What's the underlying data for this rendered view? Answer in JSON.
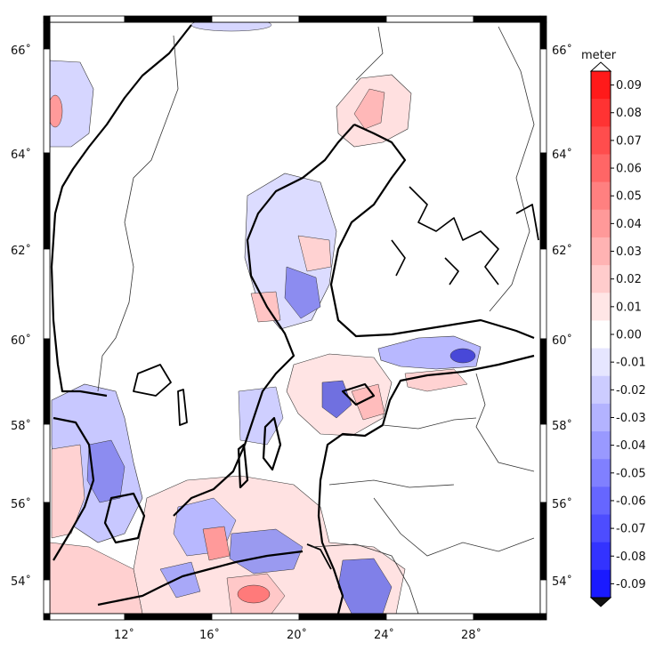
{
  "colorbar": {
    "unit": "meter",
    "labels": [
      "0.09",
      "0.08",
      "0.07",
      "0.06",
      "0.05",
      "0.04",
      "0.03",
      "0.02",
      "0.01",
      "0.00",
      "-0.01",
      "-0.02",
      "-0.03",
      "-0.04",
      "-0.05",
      "-0.06",
      "-0.07",
      "-0.08",
      "-0.09"
    ],
    "range": [
      -0.095,
      0.095
    ],
    "positive_color": "#ff1a1a",
    "negative_color": "#1a1aff",
    "neutral_color": "#ffffff"
  },
  "axes": {
    "lat_labels": [
      "66˚",
      "64˚",
      "62˚",
      "60˚",
      "58˚",
      "56˚",
      "54˚"
    ],
    "lon_labels": [
      "12˚",
      "16˚",
      "20˚",
      "24˚",
      "28˚"
    ]
  },
  "map": {
    "region": "Baltic Sea",
    "frame_style": "alternating black/white border",
    "land_color": "#ffffff",
    "coastline_color": "#000000"
  }
}
